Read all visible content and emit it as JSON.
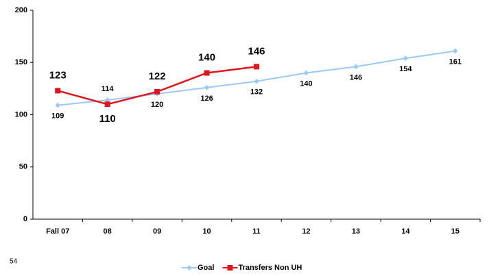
{
  "chart_data": {
    "type": "line",
    "categories": [
      "Fall 07",
      "08",
      "09",
      "10",
      "11",
      "12",
      "13",
      "14",
      "15"
    ],
    "series": [
      {
        "name": "Goal",
        "color": "#99c9f5",
        "values": [
          109,
          114,
          120,
          126,
          132,
          140,
          146,
          154,
          161
        ]
      },
      {
        "name": "Transfers Non UH",
        "color": "#e3141b",
        "values": [
          123,
          110,
          122,
          140,
          146,
          null,
          null,
          null,
          null
        ]
      }
    ],
    "ylim": [
      0,
      200
    ],
    "yticks": [
      0,
      50,
      100,
      150,
      200
    ],
    "grid": false,
    "legend": "bottom"
  },
  "page_number": "54"
}
